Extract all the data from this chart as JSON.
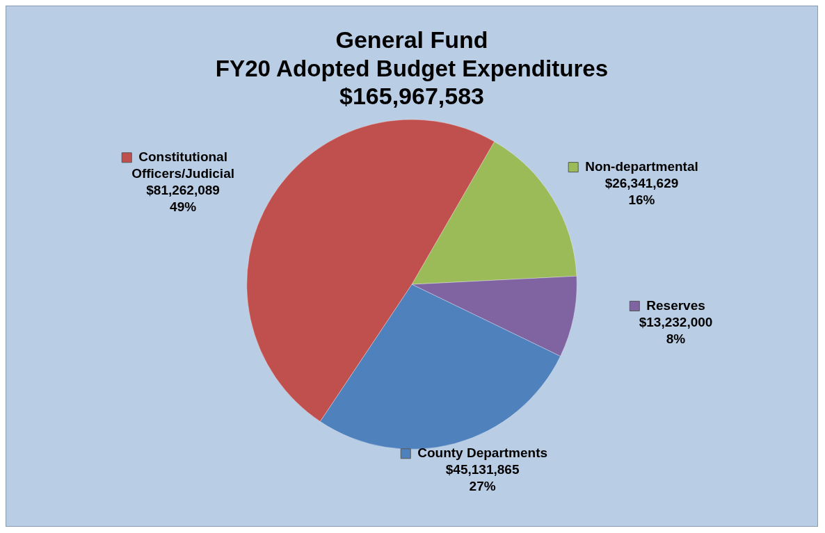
{
  "chart_data": {
    "type": "pie",
    "title": "General Fund\nFY20 Adopted Budget Expenditures",
    "subtitle": "$165,967,583",
    "categories": [
      "Non-departmental",
      "Reserves",
      "County Departments",
      "Constitutional Officers/Judicial"
    ],
    "values": [
      26341629,
      13232000,
      45131865,
      81262089
    ],
    "colors": [
      "#9bbb59",
      "#8064a2",
      "#4f81bd",
      "#c0504d"
    ],
    "value_labels": [
      "$26,341,629\n16%",
      "$13,232,000\n8%",
      "$45,131,865\n27%",
      "$81,262,089\n49%"
    ],
    "legend": "right"
  }
}
